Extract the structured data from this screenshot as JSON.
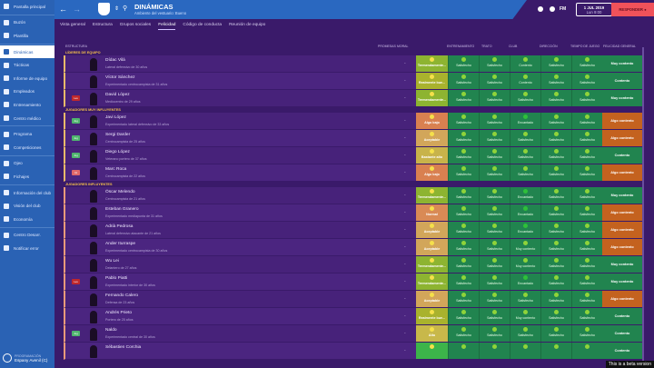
{
  "sidebar": {
    "items": [
      {
        "label": "Pantalla principal",
        "icon": "home-icon"
      },
      {
        "label": "Buzón",
        "icon": "inbox-icon"
      },
      {
        "label": "Plantilla",
        "icon": "squad-icon"
      },
      {
        "label": "Dinámicas",
        "icon": "dynamics-icon",
        "active": true
      },
      {
        "label": "Tácticas",
        "icon": "tactics-icon"
      },
      {
        "label": "Informe de equipo",
        "icon": "report-icon"
      },
      {
        "label": "Empleados",
        "icon": "staff-icon"
      },
      {
        "label": "Entrenamiento",
        "icon": "training-icon"
      },
      {
        "label": "Centro médico",
        "icon": "medical-icon"
      },
      {
        "label": "Programa",
        "icon": "calendar-icon"
      },
      {
        "label": "Competiciones",
        "icon": "trophy-icon"
      },
      {
        "label": "Ojeo",
        "icon": "scouting-icon"
      },
      {
        "label": "Fichajes",
        "icon": "transfers-icon"
      },
      {
        "label": "Información del club",
        "icon": "club-icon"
      },
      {
        "label": "Visión del club",
        "icon": "vision-icon"
      },
      {
        "label": "Economía",
        "icon": "finances-icon"
      },
      {
        "label": "Centro Desarr.",
        "icon": "development-icon"
      },
      {
        "label": "Notificar error",
        "icon": "bug-report-icon"
      }
    ],
    "separators_after": [
      0,
      2,
      8,
      10,
      12,
      15
    ],
    "manager": {
      "role": "PROGRAMACIÓN",
      "club": "Espany Avenil (C)"
    }
  },
  "header": {
    "title": "DINÁMICAS",
    "subtitle": "Ambiente del vestuario: Bueno",
    "date": "1 JUL 2019",
    "time": "Lun 9:00",
    "respond": "RESPONDER",
    "fm": "FM"
  },
  "tabs": [
    {
      "label": "Vista general"
    },
    {
      "label": "Estructura"
    },
    {
      "label": "Grupos sociales"
    },
    {
      "label": "Felicidad",
      "active": true
    },
    {
      "label": "Código de conducta"
    },
    {
      "label": "Reunión de equipo"
    }
  ],
  "columns": {
    "structure": "ESTRUCTURA",
    "promises": "PROMESAS",
    "morale": "MORAL",
    "training": "ENTRENAMIENTO",
    "treatment": "TRATO",
    "club": "CLUB",
    "board": "DIRECCIÓN",
    "playing_time": "TIEMPO DE JUEGO",
    "overall": "FELICIDAD GENERAL"
  },
  "colors": {
    "satisfied": "#21844f",
    "somewhat_content": "#c4621f",
    "very_high_morale": "#8db431",
    "low_morale": "#d98050",
    "ok_morale": "#d2a65a"
  },
  "sections": [
    {
      "title": "LÍDERES DE EQUIPO",
      "rows": [
        {
          "name": "Dídac Vilá",
          "desc": "Lateral defensivo de 30 años",
          "badge": "",
          "promise": "-",
          "moral": "Tremendamente...",
          "moral_color": "#8db431",
          "cells": [
            "Satisfecho",
            "Satisfecho",
            "Contento",
            "Satisfecho",
            "Satisfecho"
          ],
          "overall": "Muy contento"
        },
        {
          "name": "Víctor Sánchez",
          "desc": "Experimentado centrocampista de 31 años",
          "badge": "",
          "promise": "-",
          "moral": "Realmente bue...",
          "moral_color": "#a9b22d",
          "cells": [
            "Satisfecho",
            "Satisfecho",
            "Contento",
            "Satisfecho",
            "Satisfecho"
          ],
          "overall": "Contento"
        },
        {
          "name": "David López",
          "desc": "Mediocentro de 29 años",
          "badge": "Les",
          "badge_color": "#c0282c",
          "promise": "-",
          "moral": "Tremendamente...",
          "moral_color": "#8db431",
          "cells": [
            "Satisfecho",
            "Satisfecho",
            "Satisfecho",
            "Satisfecho",
            "Satisfecho"
          ],
          "overall": "Muy contento"
        }
      ]
    },
    {
      "title": "JUGADORES MUY INFLUYENTES",
      "rows": [
        {
          "name": "Javi López",
          "desc": "Experimentado lateral defensivo de 33 años",
          "badge": "Jug",
          "badge_color": "#4fb56e",
          "promise": "-",
          "moral": "Algo bajo",
          "moral_color": "#d98050",
          "cells": [
            "Satisfecho",
            "Satisfecho",
            "Encantado",
            "Satisfecho",
            "Satisfecho"
          ],
          "overall": "Algo contento"
        },
        {
          "name": "Sergi Darder",
          "desc": "Centrocampista de 25 años",
          "badge": "Jug",
          "badge_color": "#4fb56e",
          "promise": "-",
          "moral": "Aceptable",
          "moral_color": "#d2a65a",
          "cells": [
            "Satisfecho",
            "Satisfecho",
            "Satisfecho",
            "Satisfecho",
            "Satisfecho"
          ],
          "overall": "Algo contento"
        },
        {
          "name": "Diego López",
          "desc": "Veterano portero de 37 años",
          "badge": "Jug",
          "badge_color": "#4fb56e",
          "promise": "-",
          "moral": "Bastante alto",
          "moral_color": "#c8b34a",
          "cells": [
            "Satisfecho",
            "Satisfecho",
            "Satisfecho",
            "Satisfecho",
            "Satisfecho"
          ],
          "overall": "Contento"
        },
        {
          "name": "Marc Roca",
          "desc": "Centrocampista de 22 años",
          "badge": "Int",
          "badge_color": "#e0686a",
          "promise": "-",
          "moral": "Algo bajo",
          "moral_color": "#d98050",
          "cells": [
            "Satisfecho",
            "Satisfecho",
            "Satisfecho",
            "Satisfecho",
            "Satisfecho"
          ],
          "overall": "Algo contento"
        }
      ]
    },
    {
      "title": "JUGADORES INFLUYENTES",
      "rows": [
        {
          "name": "Óscar Melendo",
          "desc": "Centrocampista de 21 años",
          "badge": "",
          "promise": "-",
          "moral": "Tremendamente...",
          "moral_color": "#8db431",
          "cells": [
            "Satisfecho",
            "Satisfecho",
            "Encantado",
            "Satisfecho",
            "Satisfecho"
          ],
          "overall": "Muy contento"
        },
        {
          "name": "Esteban Granero",
          "desc": "Experimentado mediapunta de 31 años",
          "badge": "",
          "promise": "-",
          "moral": "Normal",
          "moral_color": "#d98a55",
          "cells": [
            "Satisfecho",
            "Satisfecho",
            "Encantado",
            "Satisfecho",
            "Satisfecho"
          ],
          "overall": "Algo contento"
        },
        {
          "name": "Adrià Pedrosa",
          "desc": "Lateral defensivo atacante de 21 años",
          "badge": "",
          "promise": "-",
          "moral": "Aceptable",
          "moral_color": "#d2a65a",
          "cells": [
            "Satisfecho",
            "Satisfecho",
            "Encantado",
            "Satisfecho",
            "Satisfecho"
          ],
          "overall": "Algo contento"
        },
        {
          "name": "Ander Iturraspe",
          "desc": "Experimentado centrocampista de 30 años",
          "badge": "",
          "promise": "-",
          "moral": "Aceptable",
          "moral_color": "#d2a65a",
          "cells": [
            "Satisfecho",
            "Satisfecho",
            "Muy contento",
            "Satisfecho",
            "Satisfecho"
          ],
          "overall": "Algo contento"
        },
        {
          "name": "Wu Lei",
          "desc": "Delantero de 27 años",
          "badge": "",
          "promise": "-",
          "moral": "Tremendamente...",
          "moral_color": "#8db431",
          "cells": [
            "Satisfecho",
            "Satisfecho",
            "Muy contento",
            "Satisfecho",
            "Satisfecho"
          ],
          "overall": "Muy contento"
        },
        {
          "name": "Pablo Piatti",
          "desc": "Experimentado interior de 30 años",
          "badge": "Les",
          "badge_color": "#c0282c",
          "promise": "-",
          "moral": "Tremendamente...",
          "moral_color": "#8db431",
          "cells": [
            "Satisfecho",
            "Satisfecho",
            "Encantado",
            "Satisfecho",
            "Satisfecho"
          ],
          "overall": "Muy contento"
        },
        {
          "name": "Fernando Calero",
          "desc": "Defensa de 23 años",
          "badge": "",
          "promise": "-",
          "moral": "Aceptable",
          "moral_color": "#d2a65a",
          "cells": [
            "Satisfecho",
            "Satisfecho",
            "Satisfecho",
            "Satisfecho",
            "Satisfecho"
          ],
          "overall": "Algo contento"
        },
        {
          "name": "Andrés Prieto",
          "desc": "Portero de 25 años",
          "badge": "",
          "promise": "-",
          "moral": "Realmente bue...",
          "moral_color": "#a9b22d",
          "cells": [
            "Satisfecho",
            "Satisfecho",
            "Muy contento",
            "Satisfecho",
            "Satisfecho"
          ],
          "overall": "Contento"
        },
        {
          "name": "Naldo",
          "desc": "Experimentado central de 30 años",
          "badge": "Jug",
          "badge_color": "#4fb56e",
          "promise": "-",
          "moral": "Alto",
          "moral_color": "#c8b84a",
          "cells": [
            "Satisfecho",
            "Satisfecho",
            "Satisfecho",
            "Satisfecho",
            "Satisfecho"
          ],
          "overall": "Contento"
        },
        {
          "name": "Sébastien Corchia",
          "desc": "",
          "badge": "",
          "promise": "-",
          "moral": "",
          "moral_color": "#3cb44a",
          "cells": [
            "",
            "",
            "",
            "",
            ""
          ],
          "overall": "Contento"
        }
      ]
    }
  ],
  "beta": "This is a beta version"
}
